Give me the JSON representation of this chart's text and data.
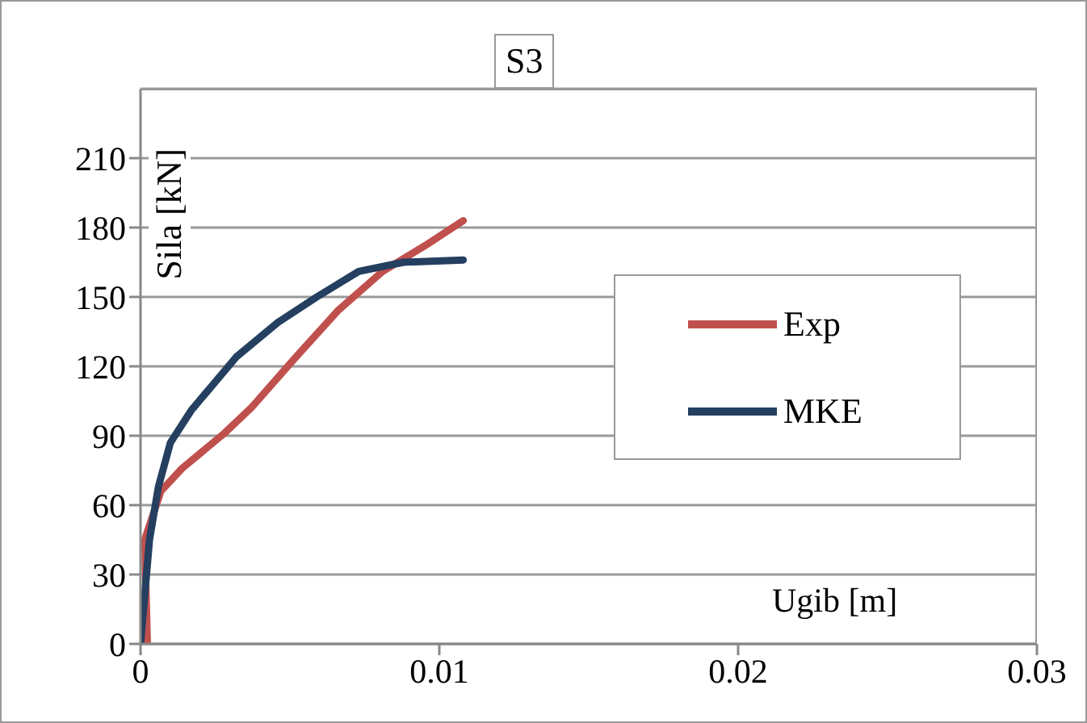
{
  "chart_data": {
    "type": "line",
    "title": "S3",
    "xlabel": "Ugib [m]",
    "ylabel": "Sila [kN]",
    "xlim": [
      0,
      0.03
    ],
    "xticks": [
      0,
      0.01,
      0.02,
      0.03
    ],
    "ylim": [
      0,
      240
    ],
    "yticks": [
      0,
      30,
      60,
      90,
      120,
      150,
      180,
      210
    ],
    "grid": "y",
    "legend": "right",
    "marker": "none",
    "line_style": "solid",
    "series": [
      {
        "name": "Exp",
        "color": "#c0504d",
        "x": [
          0.00023,
          0.00014,
          0.00068,
          0.0014,
          0.0028,
          0.0037,
          0.0052,
          0.0066,
          0.0081,
          0.0095,
          0.0108
        ],
        "values": [
          0,
          45,
          66,
          76,
          91,
          102,
          124,
          144,
          161,
          172,
          183
        ]
      },
      {
        "name": "MKE",
        "color": "#243f60",
        "x": [
          0,
          0.0003,
          0.0006,
          0.001,
          0.0017,
          0.0032,
          0.0046,
          0.0059,
          0.0073,
          0.0088,
          0.0108
        ],
        "values": [
          0,
          45,
          68,
          87,
          101,
          124,
          139,
          150,
          161,
          165,
          166
        ]
      }
    ]
  }
}
